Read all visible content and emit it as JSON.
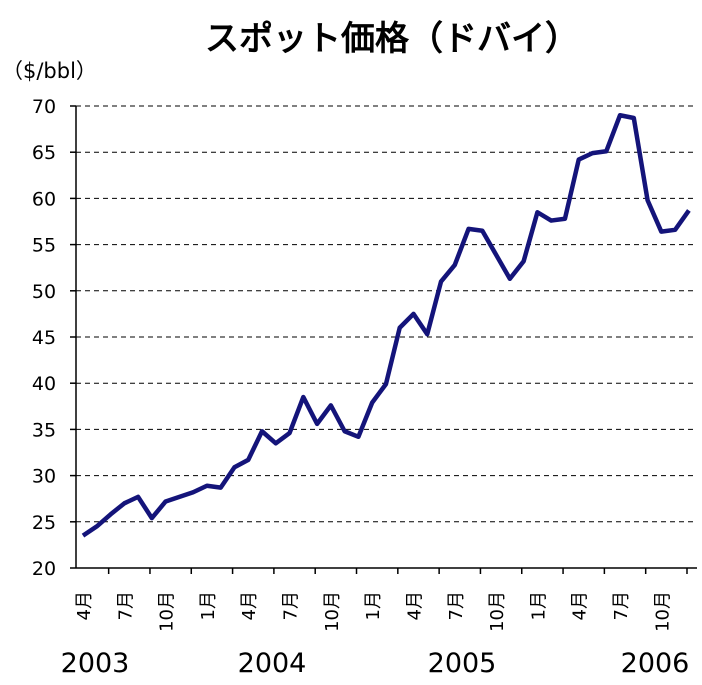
{
  "chart_data": {
    "type": "line",
    "title": "スポット価格（ドバイ）",
    "y_label": "（$/bbl）",
    "categories": [
      "4月",
      null,
      null,
      "7月",
      null,
      null,
      "10月",
      null,
      null,
      "1月",
      null,
      null,
      "4月",
      null,
      null,
      "7月",
      null,
      null,
      "10月",
      null,
      null,
      "1月",
      null,
      null,
      "4月",
      null,
      null,
      "7月",
      null,
      null,
      "10月",
      null,
      null,
      "1月",
      null,
      null,
      "4月",
      null,
      null,
      "7月",
      null,
      null,
      "10月",
      null,
      null
    ],
    "years": [
      "2003",
      "2004",
      "2005",
      "2006"
    ],
    "series": [
      {
        "name": "ドバイ",
        "color": "#14147a",
        "values": [
          23.5,
          24.5,
          25.8,
          27.0,
          27.7,
          25.4,
          27.2,
          27.7,
          28.2,
          28.9,
          28.7,
          30.9,
          31.7,
          34.8,
          33.5,
          34.6,
          38.5,
          35.6,
          37.6,
          34.8,
          34.2,
          37.9,
          39.9,
          46.0,
          47.5,
          45.3,
          51.0,
          52.8,
          56.7,
          56.5,
          53.9,
          51.3,
          53.2,
          58.5,
          57.6,
          57.8,
          64.2,
          64.9,
          65.1,
          69.0,
          68.7,
          59.8,
          56.4,
          56.6,
          58.7
        ]
      }
    ],
    "ylim": [
      20,
      70
    ],
    "yticks": [
      20,
      25,
      30,
      35,
      40,
      45,
      50,
      55,
      60,
      65,
      70
    ],
    "grid": true
  }
}
